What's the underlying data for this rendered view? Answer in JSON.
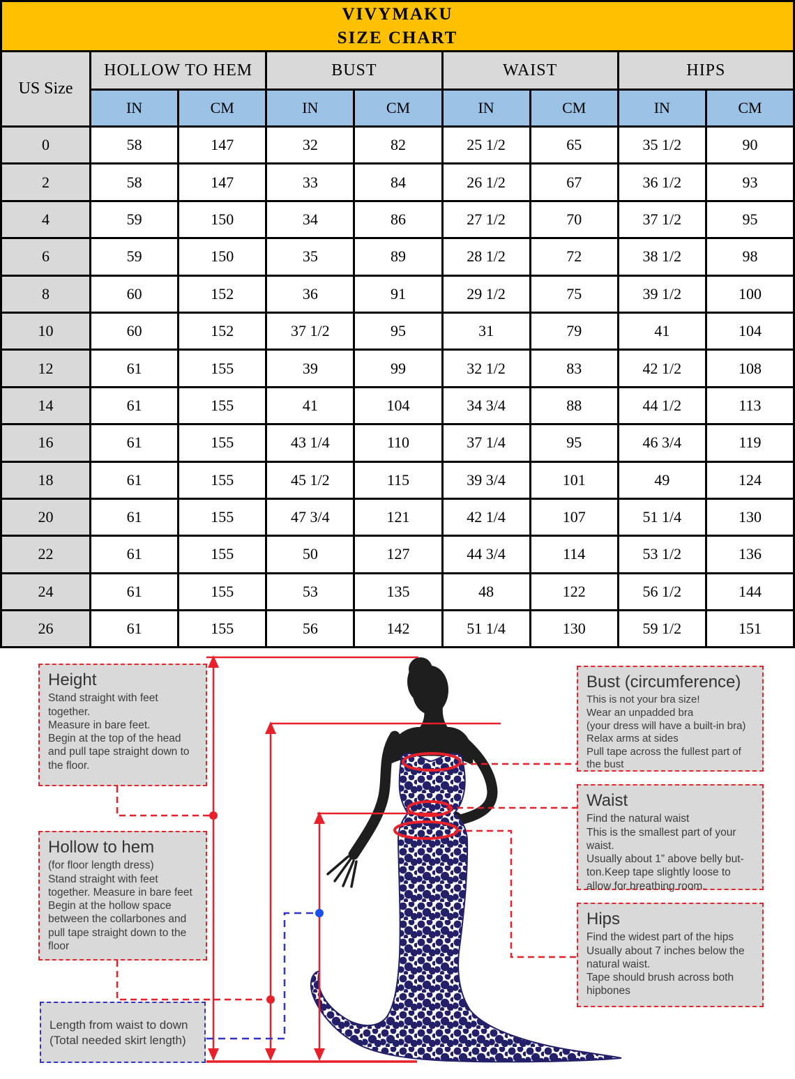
{
  "header": {
    "brand": "VIVYMAKU",
    "subtitle": "SIZE CHART"
  },
  "colors": {
    "brand_band_bg": "#ffc000",
    "group_header_bg": "#d9d9d9",
    "unit_header_bg": "#9cc2e5",
    "size_column_bg": "#d9d9d9",
    "table_border": "#000000",
    "note_box_bg": "#d9d9d9",
    "red_accent": "#e8202a",
    "blue_accent": "#3434c4",
    "blue_dot": "#1b50f0",
    "dress_navy": "#232069",
    "body_black": "#1e1e1e"
  },
  "table": {
    "corner_label": "US Size",
    "groups": [
      {
        "label": "HOLLOW TO HEM"
      },
      {
        "label": "BUST"
      },
      {
        "label": "WAIST"
      },
      {
        "label": "HIPS"
      }
    ],
    "unit_labels": [
      "IN",
      "CM",
      "IN",
      "CM",
      "IN",
      "CM",
      "IN",
      "CM"
    ],
    "rows": [
      {
        "size": "0",
        "cells": [
          "58",
          "147",
          "32",
          "82",
          "25 1/2",
          "65",
          "35 1/2",
          "90"
        ]
      },
      {
        "size": "2",
        "cells": [
          "58",
          "147",
          "33",
          "84",
          "26 1/2",
          "67",
          "36 1/2",
          "93"
        ]
      },
      {
        "size": "4",
        "cells": [
          "59",
          "150",
          "34",
          "86",
          "27 1/2",
          "70",
          "37 1/2",
          "95"
        ]
      },
      {
        "size": "6",
        "cells": [
          "59",
          "150",
          "35",
          "89",
          "28 1/2",
          "72",
          "38 1/2",
          "98"
        ]
      },
      {
        "size": "8",
        "cells": [
          "60",
          "152",
          "36",
          "91",
          "29 1/2",
          "75",
          "39 1/2",
          "100"
        ]
      },
      {
        "size": "10",
        "cells": [
          "60",
          "152",
          "37 1/2",
          "95",
          "31",
          "79",
          "41",
          "104"
        ]
      },
      {
        "size": "12",
        "cells": [
          "61",
          "155",
          "39",
          "99",
          "32 1/2",
          "83",
          "42 1/2",
          "108"
        ]
      },
      {
        "size": "14",
        "cells": [
          "61",
          "155",
          "41",
          "104",
          "34 3/4",
          "88",
          "44 1/2",
          "113"
        ]
      },
      {
        "size": "16",
        "cells": [
          "61",
          "155",
          "43 1/4",
          "110",
          "37 1/4",
          "95",
          "46 3/4",
          "119"
        ]
      },
      {
        "size": "18",
        "cells": [
          "61",
          "155",
          "45 1/2",
          "115",
          "39 3/4",
          "101",
          "49",
          "124"
        ]
      },
      {
        "size": "20",
        "cells": [
          "61",
          "155",
          "47 3/4",
          "121",
          "42 1/4",
          "107",
          "51 1/4",
          "130"
        ]
      },
      {
        "size": "22",
        "cells": [
          "61",
          "155",
          "50",
          "127",
          "44 3/4",
          "114",
          "53 1/2",
          "136"
        ]
      },
      {
        "size": "24",
        "cells": [
          "61",
          "155",
          "53",
          "135",
          "48",
          "122",
          "56 1/2",
          "144"
        ]
      },
      {
        "size": "26",
        "cells": [
          "61",
          "155",
          "56",
          "142",
          "51 1/4",
          "130",
          "59 1/2",
          "151"
        ]
      }
    ]
  },
  "guide": {
    "height": {
      "title": "Height",
      "body": "Stand straight with feet\ntogether.\nMeasure in bare feet.\nBegin at the top of the head\nand pull tape straight down to\nthe floor."
    },
    "hollow": {
      "title": "Hollow to hem",
      "body": "(for floor length dress)\nStand straight with feet\ntogether. Measure in bare feet\nBegin at the hollow space\nbetween the collarbones and\npull tape straight down to the\nfloor"
    },
    "length": {
      "body": "Length from waist to down\n(Total needed skirt length)"
    },
    "bust": {
      "title": "Bust (circumference)",
      "body": "This is not your bra size!\nWear an unpadded bra\n(your dress will have a built-in bra)\nRelax arms at sides\nPull tape across the fullest part of\nthe bust"
    },
    "waist": {
      "title": "Waist",
      "body": "Find the natural waist\nThis is the smallest part of your\nwaist.\nUsually about 1” above belly but-\nton.Keep tape slightly loose to\nallow for breathing room."
    },
    "hips": {
      "title": "Hips",
      "body": "Find the widest part of the hips\nUsually about 7 inches below the\nnatural waist.\nTape should brush across both\nhipbones"
    }
  }
}
